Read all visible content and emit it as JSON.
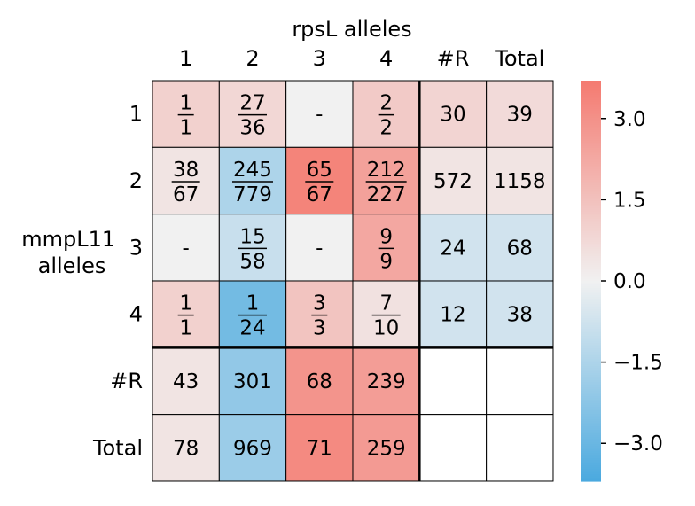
{
  "chart_data": {
    "type": "heatmap",
    "title": "",
    "xlabel": "rpsL alleles",
    "ylabel": "mmpL11\nalleles",
    "columns": [
      "1",
      "2",
      "3",
      "4",
      "#R",
      "Total"
    ],
    "rows": [
      "1",
      "2",
      "3",
      "4",
      "#R",
      "Total"
    ],
    "cells": [
      [
        {
          "num": "1",
          "den": "1",
          "z": 1.0
        },
        {
          "num": "27",
          "den": "36",
          "z": 0.8
        },
        {
          "text": "-",
          "z": 0.0
        },
        {
          "num": "2",
          "den": "2",
          "z": 1.2
        },
        {
          "text": "30",
          "z": 0.9
        },
        {
          "text": "39",
          "z": 0.7
        }
      ],
      [
        {
          "num": "38",
          "den": "67",
          "z": 0.4
        },
        {
          "num": "245",
          "den": "779",
          "z": -1.5
        },
        {
          "num": "65",
          "den": "67",
          "z": 3.4
        },
        {
          "num": "212",
          "den": "227",
          "z": 2.5
        },
        {
          "text": "572",
          "z": 0.4
        },
        {
          "text": "1158",
          "z": 0.4
        }
      ],
      [
        {
          "text": "-",
          "z": 0.0
        },
        {
          "num": "15",
          "den": "58",
          "z": -0.9
        },
        {
          "text": "-",
          "z": 0.0
        },
        {
          "num": "9",
          "den": "9",
          "z": 2.3
        },
        {
          "text": "24",
          "z": -0.7
        },
        {
          "text": "68",
          "z": -0.7
        }
      ],
      [
        {
          "num": "1",
          "den": "1",
          "z": 1.0
        },
        {
          "num": "1",
          "den": "24",
          "z": -2.8
        },
        {
          "num": "3",
          "den": "3",
          "z": 1.4
        },
        {
          "num": "7",
          "den": "10",
          "z": 0.5
        },
        {
          "text": "12",
          "z": -0.7
        },
        {
          "text": "38",
          "z": -0.7
        }
      ],
      [
        {
          "text": "43",
          "z": 0.4
        },
        {
          "text": "301",
          "z": -2.1
        },
        {
          "text": "68",
          "z": 2.9
        },
        {
          "text": "239",
          "z": 2.6
        },
        {
          "text": "",
          "z": null
        },
        {
          "text": "",
          "z": null
        }
      ],
      [
        {
          "text": "78",
          "z": 0.4
        },
        {
          "text": "969",
          "z": -1.9
        },
        {
          "text": "71",
          "z": 3.2
        },
        {
          "text": "259",
          "z": 2.7
        },
        {
          "text": "",
          "z": null
        },
        {
          "text": "",
          "z": null
        }
      ]
    ],
    "colorbar": {
      "vmin": -3.7,
      "vmax": 3.7,
      "ticks": [
        3.0,
        1.5,
        0.0,
        -1.5,
        -3.0
      ],
      "tick_labels": [
        "3.0",
        "1.5",
        "0.0",
        "−1.5",
        "−3.0"
      ],
      "colors": {
        "negative": "#4aa9df",
        "center": "#f1f1f1",
        "positive": "#f47a70"
      }
    },
    "grid": true,
    "separators": "thick line after 4th row and 4th column"
  }
}
